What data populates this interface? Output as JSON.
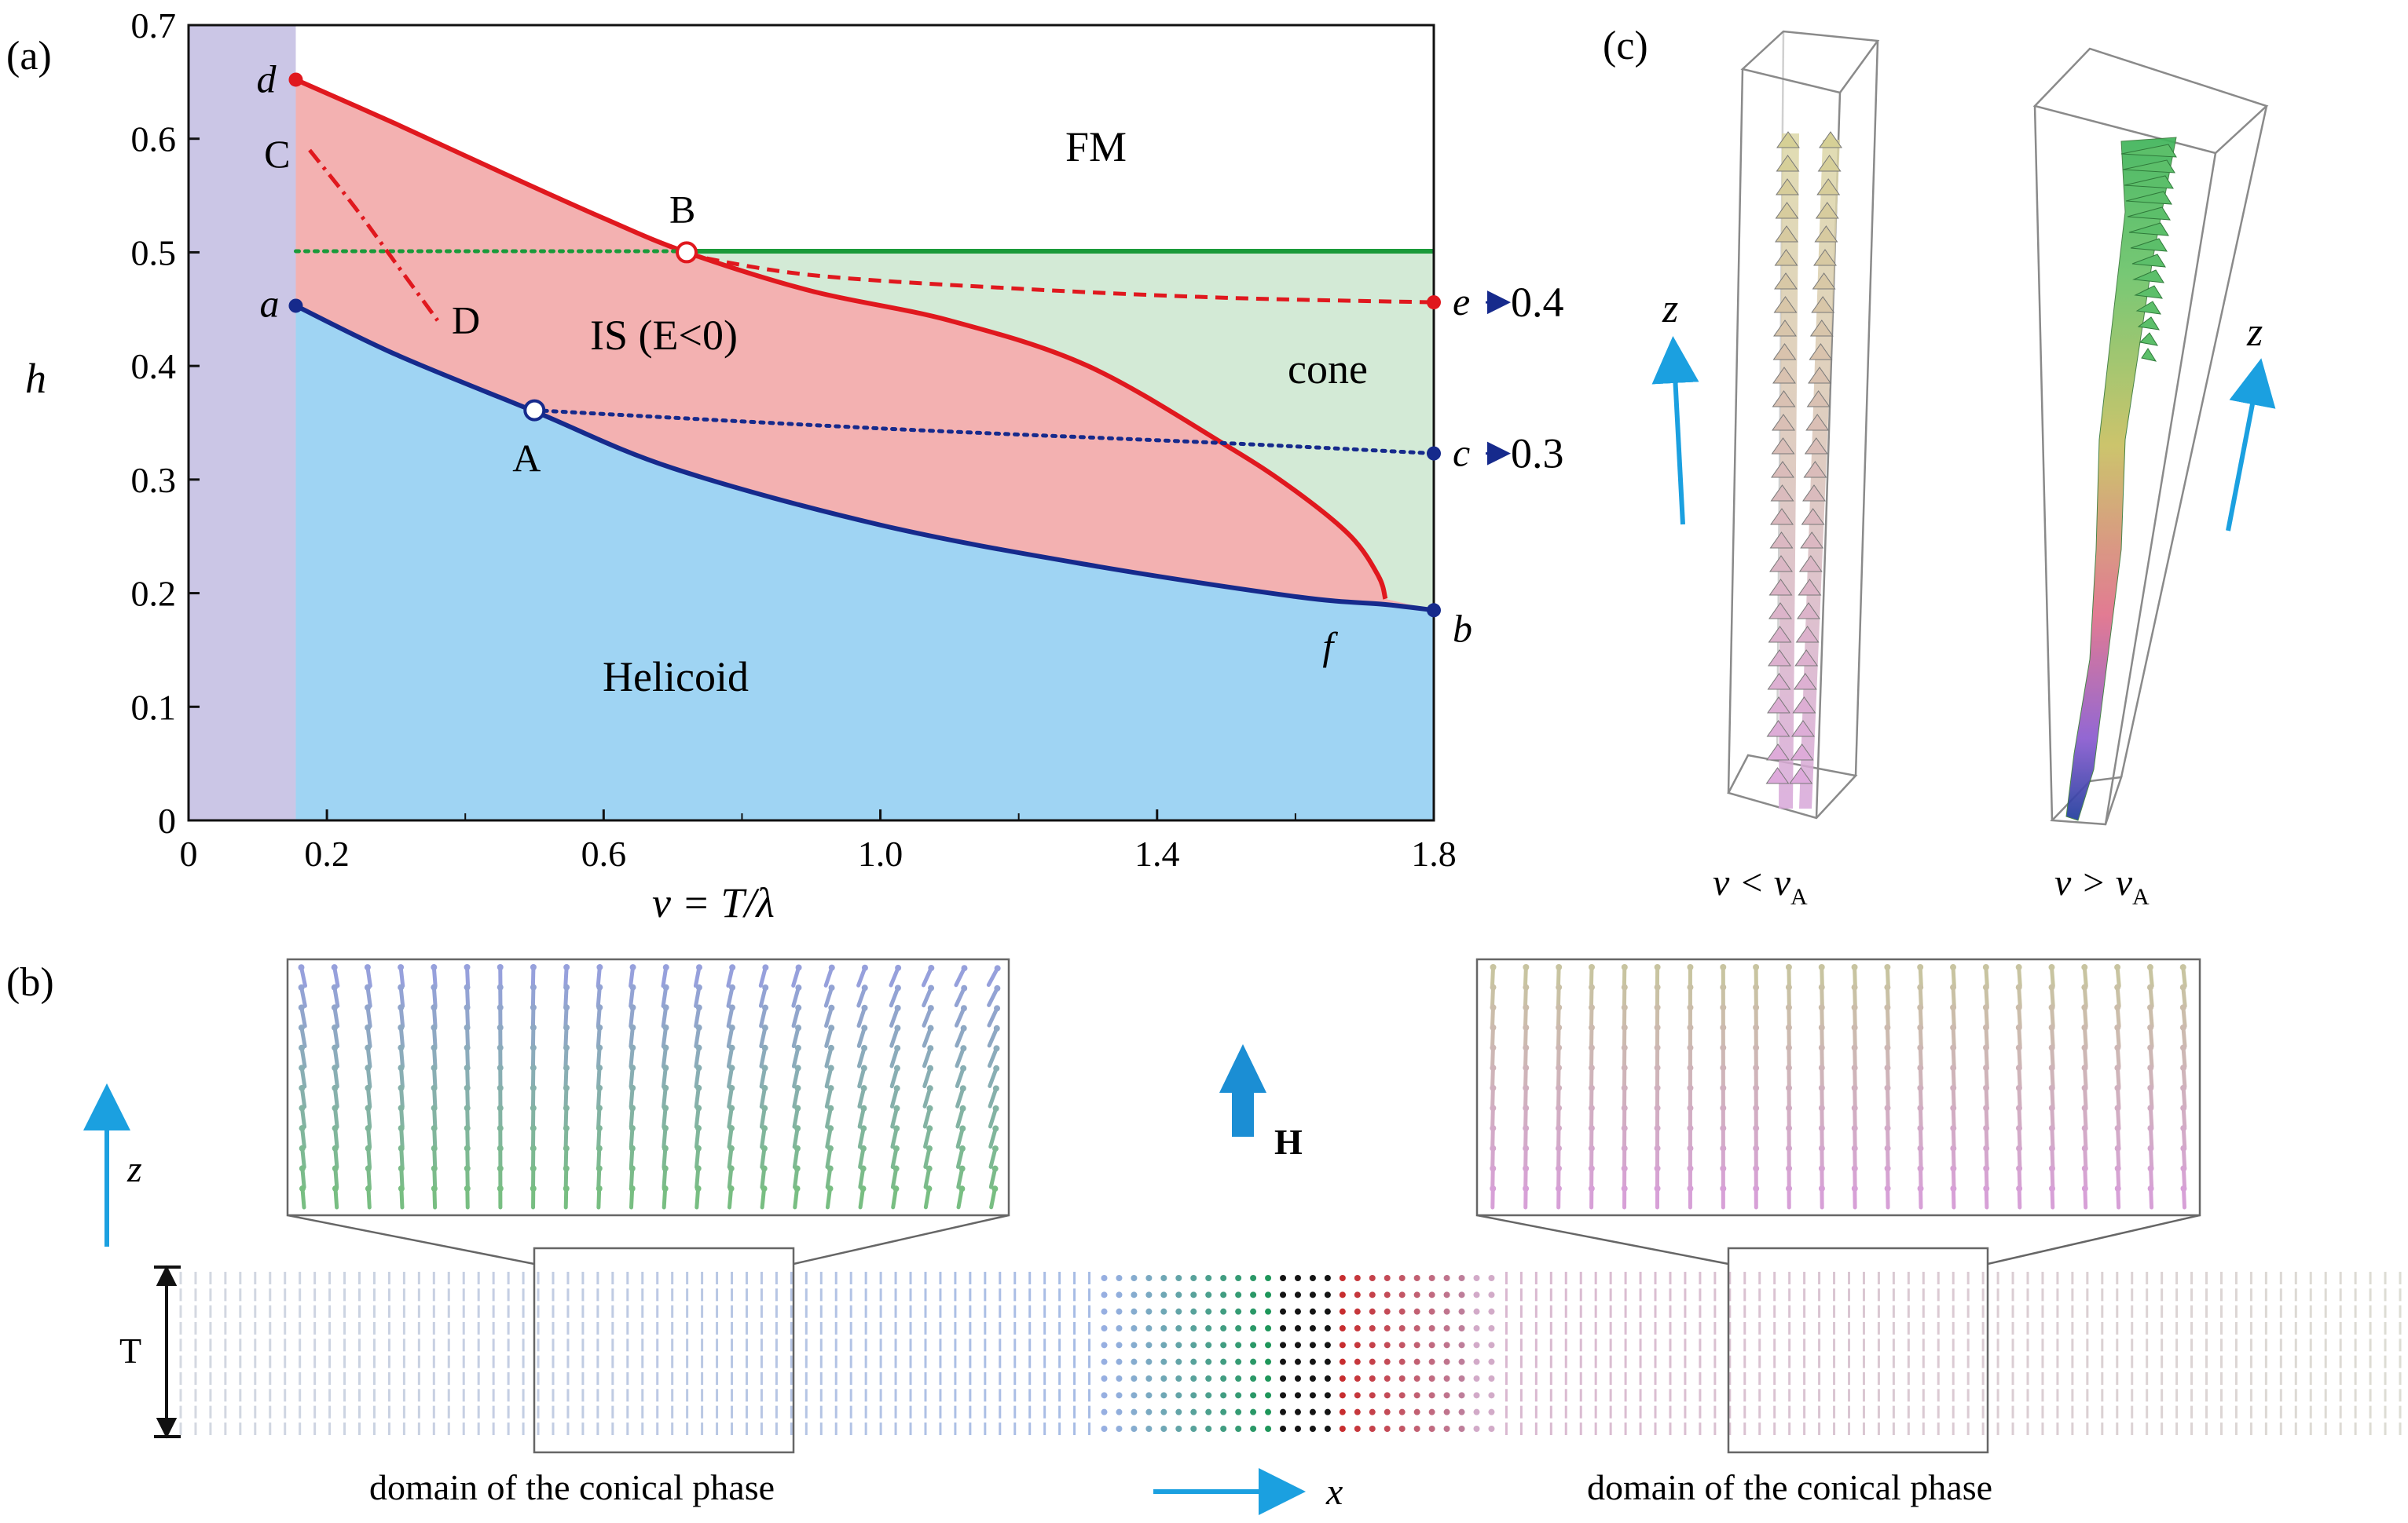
{
  "panel_labels": {
    "a": "(a)",
    "b": "(b)",
    "c": "(c)"
  },
  "chart_data": {
    "type": "area",
    "title": "",
    "xlabel": "ν = T/λ",
    "ylabel": "h",
    "xlim": [
      0,
      1.8
    ],
    "ylim": [
      0,
      0.7
    ],
    "x_ticks": [
      "0",
      "0.2",
      "0.6",
      "1.0",
      "1.4",
      "1.8"
    ],
    "x_tick_values": [
      0,
      0.2,
      0.6,
      1.0,
      1.4,
      1.8
    ],
    "y_ticks": [
      "0",
      "0.1",
      "0.2",
      "0.3",
      "0.4",
      "0.5",
      "0.6",
      "0.7"
    ],
    "y_tick_values": [
      0,
      0.1,
      0.2,
      0.3,
      0.4,
      0.5,
      0.6,
      0.7
    ],
    "excluded_region": {
      "x": [
        0,
        0.155
      ],
      "color": "#cbc6e6"
    },
    "regions": [
      {
        "name": "FM",
        "label": "FM",
        "color": "#ffffff"
      },
      {
        "name": "cone",
        "label": "cone",
        "color": "#d3ead6"
      },
      {
        "name": "IS",
        "label": "IS (E<0)",
        "color": "#f3b1b1"
      },
      {
        "name": "Helicoid",
        "label": "Helicoid",
        "color": "#9fd4f3"
      }
    ],
    "series": [
      {
        "name": "upper IS boundary (d–B–f)",
        "color": "#e0181e",
        "style": "solid",
        "x": [
          0.155,
          0.3,
          0.45,
          0.6,
          0.72,
          0.9,
          1.1,
          1.3,
          1.5,
          1.6,
          1.68,
          1.72,
          1.73
        ],
        "y": [
          0.652,
          0.613,
          0.571,
          0.53,
          0.5,
          0.466,
          0.44,
          0.4,
          0.33,
          0.29,
          0.25,
          0.215,
          0.195
        ]
      },
      {
        "name": "lower IS boundary (a–A–f–b)",
        "color": "#162a8c",
        "style": "solid",
        "x": [
          0.155,
          0.3,
          0.5,
          0.7,
          1.0,
          1.3,
          1.6,
          1.73,
          1.8
        ],
        "y": [
          0.453,
          0.41,
          0.36,
          0.31,
          0.26,
          0.225,
          0.197,
          0.19,
          0.185
        ]
      },
      {
        "name": "cone boundary",
        "color": "#1a9a3a",
        "style": "solid",
        "x": [
          0.72,
          1.8
        ],
        "y": [
          0.501,
          0.501
        ]
      },
      {
        "name": "h = 0.5 guide",
        "color": "#1a9a3a",
        "style": "dotted",
        "x": [
          0.155,
          0.72
        ],
        "y": [
          0.501,
          0.501
        ]
      },
      {
        "name": "B–e",
        "color": "#e0181e",
        "style": "dashed",
        "x": [
          0.72,
          0.9,
          1.2,
          1.5,
          1.8
        ],
        "y": [
          0.498,
          0.48,
          0.468,
          0.46,
          0.456
        ]
      },
      {
        "name": "A–c",
        "color": "#162a8c",
        "style": "dotted",
        "x": [
          0.5,
          1.0,
          1.5,
          1.8
        ],
        "y": [
          0.361,
          0.345,
          0.332,
          0.323
        ]
      },
      {
        "name": "C–D",
        "color": "#e0181e",
        "style": "dashdot",
        "x": [
          0.175,
          0.24,
          0.3,
          0.36
        ],
        "y": [
          0.59,
          0.54,
          0.49,
          0.44
        ]
      }
    ],
    "points": [
      {
        "label": "d",
        "x": 0.155,
        "y": 0.652,
        "style": "filled",
        "color": "#e0181e",
        "italic": true
      },
      {
        "label": "a",
        "x": 0.155,
        "y": 0.453,
        "style": "filled",
        "color": "#162a8c",
        "italic": true
      },
      {
        "label": "C",
        "x": 0.175,
        "y": 0.59,
        "style": "none",
        "italic": false
      },
      {
        "label": "D",
        "x": 0.36,
        "y": 0.44,
        "style": "none",
        "italic": false
      },
      {
        "label": "B",
        "x": 0.72,
        "y": 0.5,
        "style": "open",
        "color": "#e0181e",
        "italic": false
      },
      {
        "label": "A",
        "x": 0.5,
        "y": 0.361,
        "style": "open",
        "color": "#162a8c",
        "italic": false
      },
      {
        "label": "e",
        "x": 1.8,
        "y": 0.456,
        "style": "filled",
        "color": "#e0181e",
        "italic": true
      },
      {
        "label": "c",
        "x": 1.8,
        "y": 0.323,
        "style": "filled",
        "color": "#162a8c",
        "italic": true
      },
      {
        "label": "b",
        "x": 1.8,
        "y": 0.185,
        "style": "filled",
        "color": "#162a8c",
        "italic": true
      },
      {
        "label": "f",
        "x": 1.73,
        "y": 0.19,
        "style": "none",
        "italic": true
      }
    ],
    "annotations": [
      {
        "text": "→0.4",
        "at": "e"
      },
      {
        "text": "→0.3",
        "at": "c"
      }
    ]
  },
  "panel_b": {
    "left_domain_label": "domain of the conical phase",
    "right_domain_label": "domain of the conical phase",
    "field_label": "H",
    "x_axis_label": "x",
    "z_axis_label": "z",
    "thickness_label": "T"
  },
  "panel_c": {
    "z_left": "z",
    "z_right": "z",
    "left_caption": "ν < ν",
    "left_caption_sub": "A",
    "right_caption": "ν > ν",
    "right_caption_sub": "A"
  }
}
